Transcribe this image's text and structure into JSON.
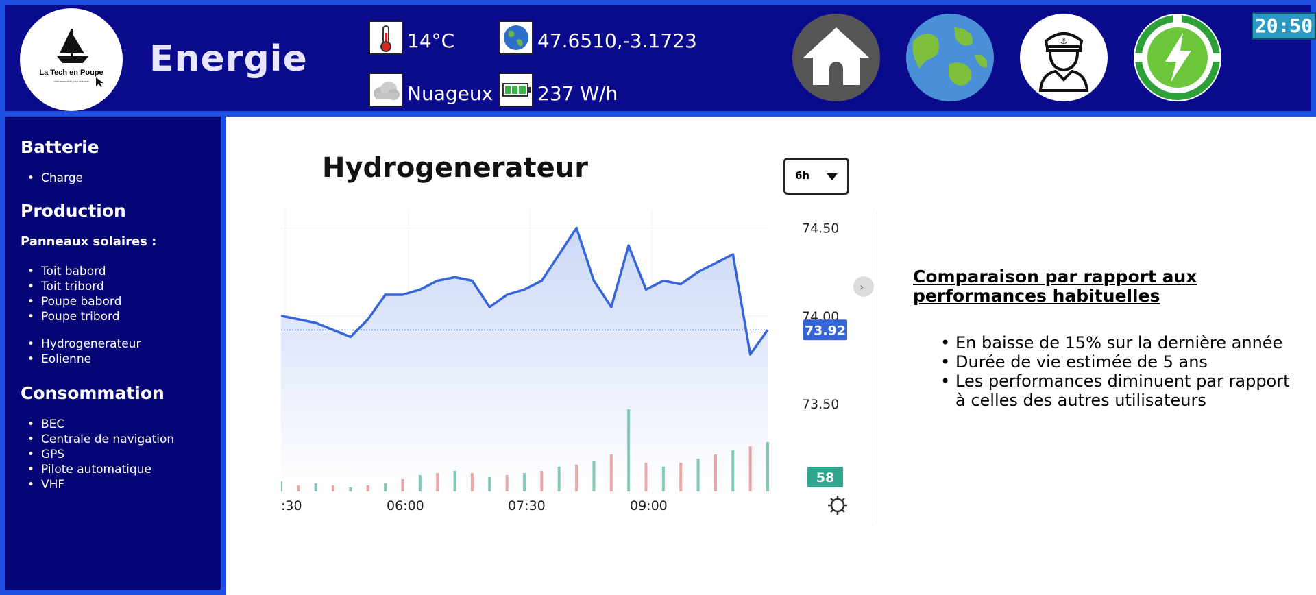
{
  "app": {
    "title": "Energie",
    "logo_text": "La Tech en Poupe",
    "logo_tagline": "Voile innovante pour une mer"
  },
  "header": {
    "temperature": "14°C",
    "coordinates": "47.6510,-3.1723",
    "weather": "Nuageux",
    "power": "237 W/h",
    "clock": "20:50",
    "nav_buttons": [
      {
        "name": "home",
        "icon": "home-icon"
      },
      {
        "name": "map",
        "icon": "globe-icon"
      },
      {
        "name": "skipper",
        "icon": "sailor-icon"
      },
      {
        "name": "energy",
        "icon": "lightning-icon"
      }
    ],
    "icons": {
      "temperature": "thermometer-icon",
      "coordinates": "globe-icon",
      "weather": "cloud-icon",
      "power": "battery-icon"
    }
  },
  "sidebar": {
    "sections": [
      {
        "title": "Batterie",
        "items": [
          "Charge"
        ]
      },
      {
        "title": "Production",
        "subtitle": "Panneaux solaires :",
        "groups": [
          [
            "Toit babord",
            "Toit tribord",
            "Poupe babord",
            "Poupe tribord"
          ],
          [
            "Hydrogenerateur",
            "Eolienne"
          ]
        ]
      },
      {
        "title": "Consommation",
        "items": [
          "BEC",
          "Centrale de navigation",
          "GPS",
          "Pilote automatique",
          "VHF"
        ]
      }
    ]
  },
  "main": {
    "chart_title": "Hydrogenerateur",
    "range": "6h",
    "comparison": {
      "title": "Comparaison par rapport aux performances habituelles",
      "items": [
        "En baisse de 15% sur la dernière année",
        "Durée de vie estimée de 5 ans",
        "Les performances diminuent par rapport à celles des autres utilisateurs"
      ]
    }
  },
  "chart_data": {
    "type": "area",
    "title": "",
    "xlabel": "",
    "ylabel": "",
    "x_ticks": [
      ":30",
      "06:00",
      "07:30",
      "09:00"
    ],
    "y_ticks": [
      "74.50",
      "74.00",
      "73.50"
    ],
    "ylim": [
      73.0,
      74.6
    ],
    "last_value": "73.92",
    "volume_label": "58",
    "series": [
      {
        "x": [
          "04:30",
          "04:45",
          "05:00",
          "05:15",
          "05:30",
          "05:45",
          "06:00",
          "06:15",
          "06:30",
          "06:45",
          "07:00",
          "07:15",
          "07:30",
          "07:45",
          "08:00",
          "08:15",
          "08:30",
          "08:45",
          "09:00",
          "09:15",
          "09:30",
          "09:45",
          "10:00",
          "10:15",
          "10:30",
          "10:45",
          "11:00",
          "11:15",
          "11:20"
        ],
        "values": [
          74.0,
          73.98,
          73.96,
          73.92,
          73.88,
          73.98,
          74.12,
          74.12,
          74.15,
          74.2,
          74.22,
          74.2,
          74.05,
          74.12,
          74.15,
          74.2,
          74.35,
          74.5,
          74.2,
          74.05,
          74.4,
          74.15,
          74.2,
          74.18,
          74.25,
          74.3,
          74.35,
          73.78,
          73.92
        ]
      }
    ],
    "volume": [
      5,
      3,
      4,
      3,
      2,
      3,
      4,
      6,
      8,
      9,
      10,
      9,
      7,
      8,
      9,
      10,
      12,
      13,
      15,
      18,
      40,
      14,
      12,
      14,
      16,
      18,
      20,
      22,
      24
    ],
    "grid": true,
    "accent_color": "#3565d8",
    "volume_up_color": "#2ea58c",
    "volume_down_color": "#e06b6b"
  },
  "colors": {
    "header_bg": "#0a0a8c",
    "border": "#1f4fe0",
    "sidebar_bg": "#050575",
    "clock_bg": "#2a9ac2"
  }
}
